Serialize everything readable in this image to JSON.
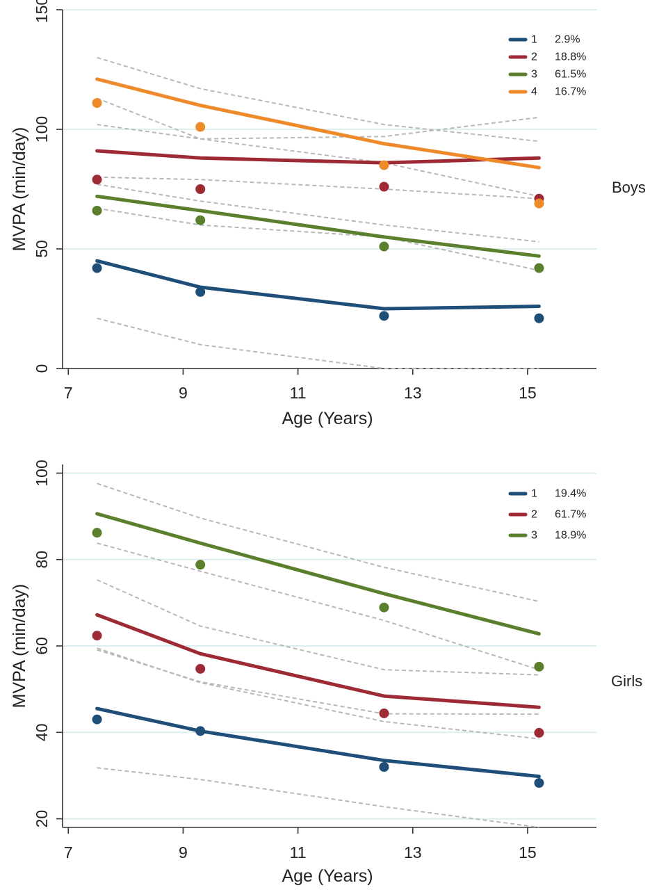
{
  "chart_data": [
    {
      "type": "line",
      "panel_label": "Boys",
      "xlabel": "Age (Years)",
      "ylabel": "MVPA (min/day)",
      "xlim": [
        6.9,
        16.2
      ],
      "ylim": [
        0,
        150
      ],
      "xticks": [
        7,
        9,
        11,
        13,
        15
      ],
      "yticks": [
        0,
        50,
        100,
        150
      ],
      "grid": "horizontal",
      "legend_position": "top-right",
      "x": [
        7.5,
        9.3,
        12.5,
        15.2
      ],
      "series": [
        {
          "name": "1",
          "pct": "2.9%",
          "color": "#1f4e79",
          "fitted": [
            45,
            34,
            25,
            26
          ],
          "observed": [
            42,
            32,
            22,
            21
          ],
          "ci_lower": [
            21,
            10,
            0,
            0
          ],
          "ci_upper": null
        },
        {
          "name": "2",
          "pct": "18.8%",
          "color": "#9e2a35",
          "fitted": [
            91,
            88,
            86,
            88
          ],
          "observed": [
            79,
            75,
            76,
            71
          ],
          "ci_lower": [
            80,
            79,
            75,
            71
          ],
          "ci_upper": [
            102,
            96,
            97,
            105
          ]
        },
        {
          "name": "3",
          "pct": "61.5%",
          "color": "#5b7f2c",
          "fitted": [
            72,
            66,
            55,
            47
          ],
          "observed": [
            66,
            62,
            51,
            42
          ],
          "ci_lower": [
            67,
            60,
            55,
            41
          ],
          "ci_upper": [
            77,
            70,
            60,
            53
          ]
        },
        {
          "name": "4",
          "pct": "16.7%",
          "color": "#ef8a2a",
          "fitted": [
            121,
            110,
            94,
            84
          ],
          "observed": [
            111,
            101,
            85,
            69
          ],
          "ci_lower": [
            113,
            96,
            86,
            72
          ],
          "ci_upper": [
            130,
            117,
            102,
            95
          ]
        }
      ]
    },
    {
      "type": "line",
      "panel_label": "Girls",
      "xlabel": "Age (Years)",
      "ylabel": "MVPA (min/day)",
      "xlim": [
        6.9,
        16.2
      ],
      "ylim": [
        18,
        102
      ],
      "xticks": [
        7,
        9,
        11,
        13,
        15
      ],
      "yticks": [
        20,
        40,
        60,
        80,
        100
      ],
      "grid": "horizontal",
      "legend_position": "top-right",
      "x": [
        7.5,
        9.3,
        12.5,
        15.2
      ],
      "series": [
        {
          "name": "1",
          "pct": "19.4%",
          "color": "#1f4e79",
          "fitted": [
            45.5,
            40.3,
            33.5,
            29.8
          ],
          "observed": [
            43,
            40.3,
            32,
            28.3
          ],
          "ci_lower": [
            31.8,
            29.1,
            22.8,
            15.4
          ],
          "ci_upper": [
            59.5,
            51.5,
            42.5,
            38.5
          ]
        },
        {
          "name": "2",
          "pct": "61.7%",
          "color": "#9e2a35",
          "fitted": [
            67.2,
            58.2,
            48.4,
            45.8
          ],
          "observed": [
            62.4,
            54.7,
            44.4,
            39.9
          ],
          "ci_lower": [
            59.1,
            51.7,
            44.3,
            44.2
          ],
          "ci_upper": [
            75.3,
            64.6,
            54.5,
            53.3
          ]
        },
        {
          "name": "3",
          "pct": "18.9%",
          "color": "#5b7f2c",
          "fitted": [
            90.6,
            83.8,
            72.1,
            62.8
          ],
          "observed": [
            86.2,
            78.8,
            68.9,
            55.2
          ],
          "ci_lower": [
            83.8,
            77.3,
            65.9,
            54.5
          ],
          "ci_upper": [
            97.6,
            89.6,
            78.2,
            70.3
          ]
        }
      ]
    }
  ]
}
